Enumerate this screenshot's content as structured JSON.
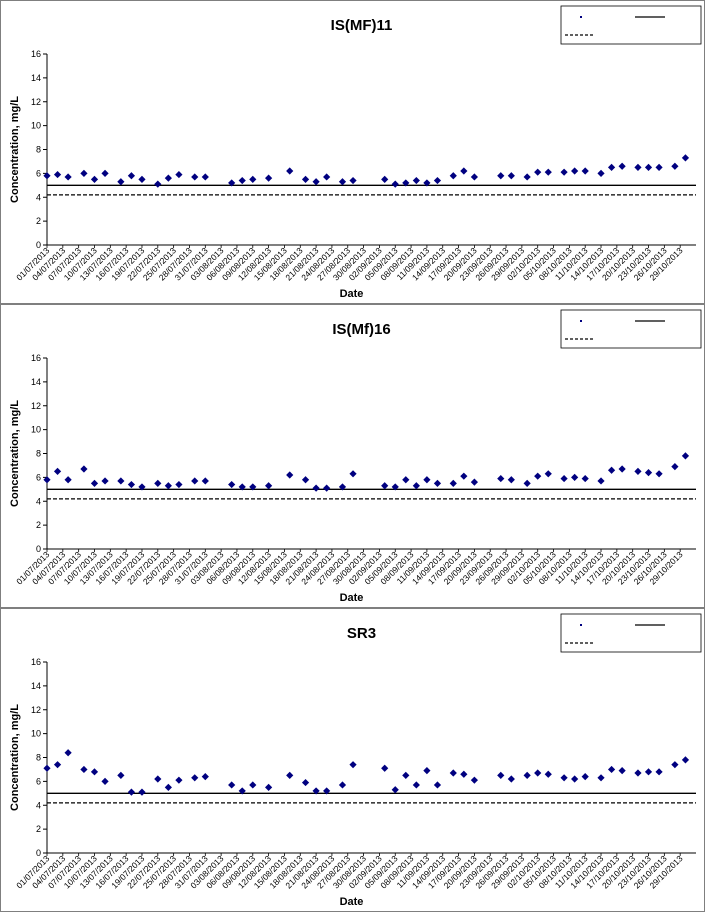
{
  "colors": {
    "marker": "#000080",
    "limit_line": "#000000",
    "frame": "#7f7f7f"
  },
  "legend": {
    "entries": [
      {
        "label": "",
        "style": "marker"
      },
      {
        "label": "",
        "style": "solid"
      },
      {
        "label": "",
        "style": "dashed"
      }
    ]
  },
  "x_tick_labels": [
    "01/07/2013",
    "04/07/2013",
    "07/07/2013",
    "10/07/2013",
    "13/07/2013",
    "16/07/2013",
    "19/07/2013",
    "22/07/2013",
    "25/07/2013",
    "28/07/2013",
    "31/07/2013",
    "03/08/2013",
    "06/08/2013",
    "09/08/2013",
    "12/08/2013",
    "15/08/2013",
    "18/08/2013",
    "21/08/2013",
    "24/08/2013",
    "27/08/2013",
    "30/08/2013",
    "02/09/2013",
    "05/09/2013",
    "08/09/2013",
    "11/09/2013",
    "14/09/2013",
    "17/09/2013",
    "20/09/2013",
    "23/09/2013",
    "26/09/2013",
    "29/09/2013",
    "02/10/2013",
    "05/10/2013",
    "08/10/2013",
    "11/10/2013",
    "14/10/2013",
    "17/10/2013",
    "20/10/2013",
    "23/10/2013",
    "26/10/2013",
    "29/10/2013"
  ],
  "chart_data": [
    {
      "type": "scatter",
      "title": "IS(MF)11",
      "xlabel": "Date",
      "ylabel": "Concentration, mg/L",
      "ylim": [
        0,
        16
      ],
      "yticks": [
        0,
        2,
        4,
        6,
        8,
        10,
        12,
        14,
        16
      ],
      "xlim": [
        "01/07/2013",
        "31/10/2013"
      ],
      "grid": false,
      "legend_position": "top-right",
      "reference_lines": [
        {
          "style": "solid",
          "y": 5.0
        },
        {
          "style": "dashed",
          "y": 4.2
        }
      ],
      "x": [
        "01/07/2013",
        "03/07/2013",
        "05/07/2013",
        "08/07/2013",
        "10/07/2013",
        "12/07/2013",
        "15/07/2013",
        "17/07/2013",
        "19/07/2013",
        "22/07/2013",
        "24/07/2013",
        "26/07/2013",
        "29/07/2013",
        "31/07/2013",
        "05/08/2013",
        "07/08/2013",
        "09/08/2013",
        "12/08/2013",
        "16/08/2013",
        "19/08/2013",
        "21/08/2013",
        "23/08/2013",
        "26/08/2013",
        "28/08/2013",
        "03/09/2013",
        "05/09/2013",
        "07/09/2013",
        "09/09/2013",
        "11/09/2013",
        "13/09/2013",
        "16/09/2013",
        "18/09/2013",
        "20/09/2013",
        "25/09/2013",
        "27/09/2013",
        "30/09/2013",
        "02/10/2013",
        "04/10/2013",
        "07/10/2013",
        "09/10/2013",
        "11/10/2013",
        "14/10/2013",
        "16/10/2013",
        "18/10/2013",
        "21/10/2013",
        "23/10/2013",
        "25/10/2013",
        "28/10/2013",
        "30/10/2013"
      ],
      "y": [
        5.8,
        5.9,
        5.7,
        6.0,
        5.5,
        6.0,
        5.3,
        5.8,
        5.5,
        5.1,
        5.6,
        5.9,
        5.7,
        5.7,
        5.2,
        5.4,
        5.5,
        5.6,
        6.2,
        5.5,
        5.3,
        5.7,
        5.3,
        5.4,
        5.5,
        5.1,
        5.2,
        5.4,
        5.2,
        5.4,
        5.8,
        6.2,
        5.7,
        5.8,
        5.8,
        5.7,
        6.1,
        6.1,
        6.1,
        6.2,
        6.2,
        6.0,
        6.5,
        6.6,
        6.5,
        6.5,
        6.5,
        6.6,
        7.3
      ]
    },
    {
      "type": "scatter",
      "title": "IS(Mf)16",
      "xlabel": "Date",
      "ylabel": "Concentration, mg/L",
      "ylim": [
        0,
        16
      ],
      "yticks": [
        0,
        2,
        4,
        6,
        8,
        10,
        12,
        14,
        16
      ],
      "xlim": [
        "01/07/2013",
        "31/10/2013"
      ],
      "grid": false,
      "legend_position": "top-right",
      "reference_lines": [
        {
          "style": "solid",
          "y": 5.0
        },
        {
          "style": "dashed",
          "y": 4.2
        }
      ],
      "x": [
        "01/07/2013",
        "03/07/2013",
        "05/07/2013",
        "08/07/2013",
        "10/07/2013",
        "12/07/2013",
        "15/07/2013",
        "17/07/2013",
        "19/07/2013",
        "22/07/2013",
        "24/07/2013",
        "26/07/2013",
        "29/07/2013",
        "31/07/2013",
        "05/08/2013",
        "07/08/2013",
        "09/08/2013",
        "12/08/2013",
        "16/08/2013",
        "19/08/2013",
        "21/08/2013",
        "23/08/2013",
        "26/08/2013",
        "28/08/2013",
        "03/09/2013",
        "05/09/2013",
        "07/09/2013",
        "09/09/2013",
        "11/09/2013",
        "13/09/2013",
        "16/09/2013",
        "18/09/2013",
        "20/09/2013",
        "25/09/2013",
        "27/09/2013",
        "30/09/2013",
        "02/10/2013",
        "04/10/2013",
        "07/10/2013",
        "09/10/2013",
        "11/10/2013",
        "14/10/2013",
        "16/10/2013",
        "18/10/2013",
        "21/10/2013",
        "23/10/2013",
        "25/10/2013",
        "28/10/2013",
        "30/10/2013"
      ],
      "y": [
        5.8,
        6.5,
        5.8,
        6.7,
        5.5,
        5.7,
        5.7,
        5.4,
        5.2,
        5.5,
        5.3,
        5.4,
        5.7,
        5.7,
        5.4,
        5.2,
        5.2,
        5.3,
        6.2,
        5.8,
        5.1,
        5.1,
        5.2,
        6.3,
        5.3,
        5.2,
        5.8,
        5.3,
        5.8,
        5.5,
        5.5,
        6.1,
        5.6,
        5.9,
        5.8,
        5.5,
        6.1,
        6.3,
        5.9,
        6.0,
        5.9,
        5.7,
        6.6,
        6.7,
        6.5,
        6.4,
        6.3,
        6.9,
        7.8
      ]
    },
    {
      "type": "scatter",
      "title": "SR3",
      "xlabel": "Date",
      "ylabel": "Concentration, mg/L",
      "ylim": [
        0,
        16
      ],
      "yticks": [
        0,
        2,
        4,
        6,
        8,
        10,
        12,
        14,
        16
      ],
      "xlim": [
        "01/07/2013",
        "31/10/2013"
      ],
      "grid": false,
      "legend_position": "top-right",
      "reference_lines": [
        {
          "style": "solid",
          "y": 5.0
        },
        {
          "style": "dashed",
          "y": 4.2
        }
      ],
      "x": [
        "01/07/2013",
        "03/07/2013",
        "05/07/2013",
        "08/07/2013",
        "10/07/2013",
        "12/07/2013",
        "15/07/2013",
        "17/07/2013",
        "19/07/2013",
        "22/07/2013",
        "24/07/2013",
        "26/07/2013",
        "29/07/2013",
        "31/07/2013",
        "05/08/2013",
        "07/08/2013",
        "09/08/2013",
        "12/08/2013",
        "16/08/2013",
        "19/08/2013",
        "21/08/2013",
        "23/08/2013",
        "26/08/2013",
        "28/08/2013",
        "03/09/2013",
        "05/09/2013",
        "07/09/2013",
        "09/09/2013",
        "11/09/2013",
        "13/09/2013",
        "16/09/2013",
        "18/09/2013",
        "20/09/2013",
        "25/09/2013",
        "27/09/2013",
        "30/09/2013",
        "02/10/2013",
        "04/10/2013",
        "07/10/2013",
        "09/10/2013",
        "11/10/2013",
        "14/10/2013",
        "16/10/2013",
        "18/10/2013",
        "21/10/2013",
        "23/10/2013",
        "25/10/2013",
        "28/10/2013",
        "30/10/2013"
      ],
      "y": [
        7.1,
        7.4,
        8.4,
        7.0,
        6.8,
        6.0,
        6.5,
        5.1,
        5.1,
        6.2,
        5.5,
        6.1,
        6.3,
        6.4,
        5.7,
        5.2,
        5.7,
        5.5,
        6.5,
        5.9,
        5.2,
        5.2,
        5.7,
        7.4,
        7.1,
        5.3,
        6.5,
        5.7,
        6.9,
        5.7,
        6.7,
        6.6,
        6.1,
        6.5,
        6.2,
        6.5,
        6.7,
        6.6,
        6.3,
        6.2,
        6.4,
        6.3,
        7.0,
        6.9,
        6.7,
        6.8,
        6.8,
        7.4,
        7.8
      ]
    }
  ]
}
